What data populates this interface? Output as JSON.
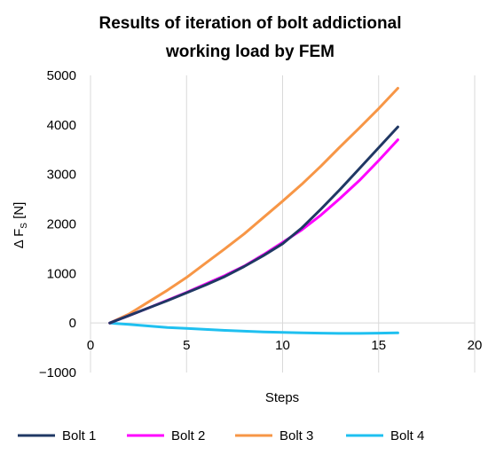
{
  "chart_data": {
    "type": "line",
    "title_lines": [
      "Results of iteration of bolt addictional",
      "working load by FEM"
    ],
    "xlabel": "Steps",
    "ylabel": {
      "prefix": "Δ F",
      "subscript": "S",
      "suffix": " [N]"
    },
    "xlim": [
      0,
      20
    ],
    "ylim": [
      -1000,
      5000
    ],
    "xticks": [
      0,
      5,
      10,
      15,
      20
    ],
    "yticks": [
      -1000,
      0,
      1000,
      2000,
      3000,
      4000,
      5000
    ],
    "xtick_labels": [
      "0",
      "5",
      "10",
      "15",
      "20"
    ],
    "ytick_labels": [
      "−1000",
      "0",
      "1000",
      "2000",
      "3000",
      "4000",
      "5000"
    ],
    "grid": {
      "vertical": true,
      "horizontal": false
    },
    "legend_position": "bottom",
    "series": [
      {
        "name": "Bolt 1",
        "color": "#203864",
        "x": [
          1,
          2,
          3,
          4,
          5,
          6,
          7,
          8,
          9,
          10,
          11,
          12,
          13,
          14,
          15,
          16
        ],
        "y": [
          0,
          150,
          300,
          450,
          610,
          770,
          940,
          1140,
          1360,
          1600,
          1920,
          2300,
          2700,
          3120,
          3540,
          3960
        ]
      },
      {
        "name": "Bolt 2",
        "color": "#ff00ff",
        "x": [
          1,
          2,
          3,
          4,
          5,
          6,
          7,
          8,
          9,
          10,
          11,
          12,
          13,
          14,
          15,
          16
        ],
        "y": [
          0,
          150,
          300,
          460,
          620,
          790,
          960,
          1150,
          1380,
          1630,
          1880,
          2180,
          2520,
          2880,
          3280,
          3700
        ]
      },
      {
        "name": "Bolt 3",
        "color": "#f79646",
        "x": [
          1,
          2,
          3,
          4,
          5,
          6,
          7,
          8,
          9,
          10,
          11,
          12,
          13,
          14,
          15,
          16
        ],
        "y": [
          0,
          180,
          420,
          660,
          920,
          1210,
          1500,
          1800,
          2130,
          2460,
          2800,
          3170,
          3560,
          3940,
          4330,
          4740
        ]
      },
      {
        "name": "Bolt 4",
        "color": "#1fc0f0",
        "x": [
          1,
          2,
          3,
          4,
          5,
          6,
          7,
          8,
          9,
          10,
          11,
          12,
          13,
          14,
          15,
          16
        ],
        "y": [
          0,
          -30,
          -60,
          -90,
          -110,
          -130,
          -150,
          -165,
          -180,
          -190,
          -200,
          -205,
          -210,
          -210,
          -205,
          -200
        ]
      }
    ]
  }
}
